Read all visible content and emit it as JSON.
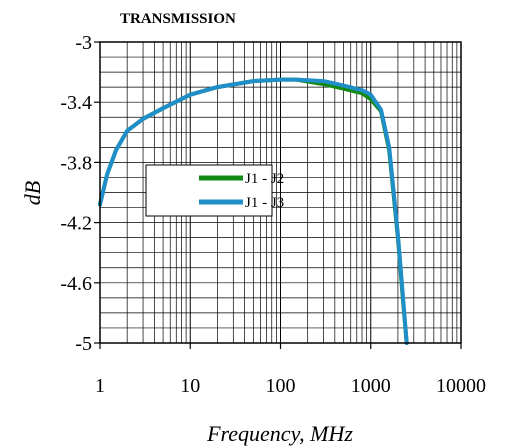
{
  "chart_data": {
    "type": "line",
    "title": "TRANSMISSION",
    "xlabel": "Frequency, MHz",
    "ylabel": "dB",
    "xscale": "log",
    "xlim": [
      1,
      10000
    ],
    "ylim": [
      -5,
      -3
    ],
    "xticks": [
      1,
      10,
      100,
      1000,
      10000
    ],
    "xtick_labels": [
      "1",
      "10",
      "100",
      "1000",
      "10000"
    ],
    "yticks": [
      -5,
      -4.6,
      -4.2,
      -3.8,
      -3.4,
      -3
    ],
    "ytick_labels": [
      "-5",
      "-4.6",
      "-4.2",
      "-3.8",
      "-3.4",
      "-3"
    ],
    "grid": true,
    "legend_position": "center-left",
    "series": [
      {
        "name": "J1 - J2",
        "color": "#138a13",
        "x": [
          1,
          1.2,
          1.5,
          2,
          3,
          5,
          10,
          20,
          50,
          100,
          150,
          300,
          500,
          800,
          1000,
          1300,
          1600,
          2000,
          2300,
          2500
        ],
        "y": [
          -4.08,
          -3.88,
          -3.72,
          -3.59,
          -3.51,
          -3.44,
          -3.35,
          -3.3,
          -3.26,
          -3.25,
          -3.25,
          -3.28,
          -3.31,
          -3.34,
          -3.38,
          -3.46,
          -3.72,
          -4.3,
          -4.75,
          -5.0
        ]
      },
      {
        "name": "J1 - J3",
        "color": "#1f8ec9",
        "x": [
          1,
          1.2,
          1.5,
          2,
          3,
          5,
          10,
          20,
          50,
          100,
          150,
          300,
          500,
          800,
          1000,
          1300,
          1600,
          2000,
          2300,
          2500
        ],
        "y": [
          -4.08,
          -3.88,
          -3.72,
          -3.59,
          -3.51,
          -3.44,
          -3.35,
          -3.3,
          -3.26,
          -3.25,
          -3.25,
          -3.26,
          -3.29,
          -3.32,
          -3.35,
          -3.45,
          -3.7,
          -4.28,
          -4.73,
          -5.0
        ]
      }
    ]
  }
}
